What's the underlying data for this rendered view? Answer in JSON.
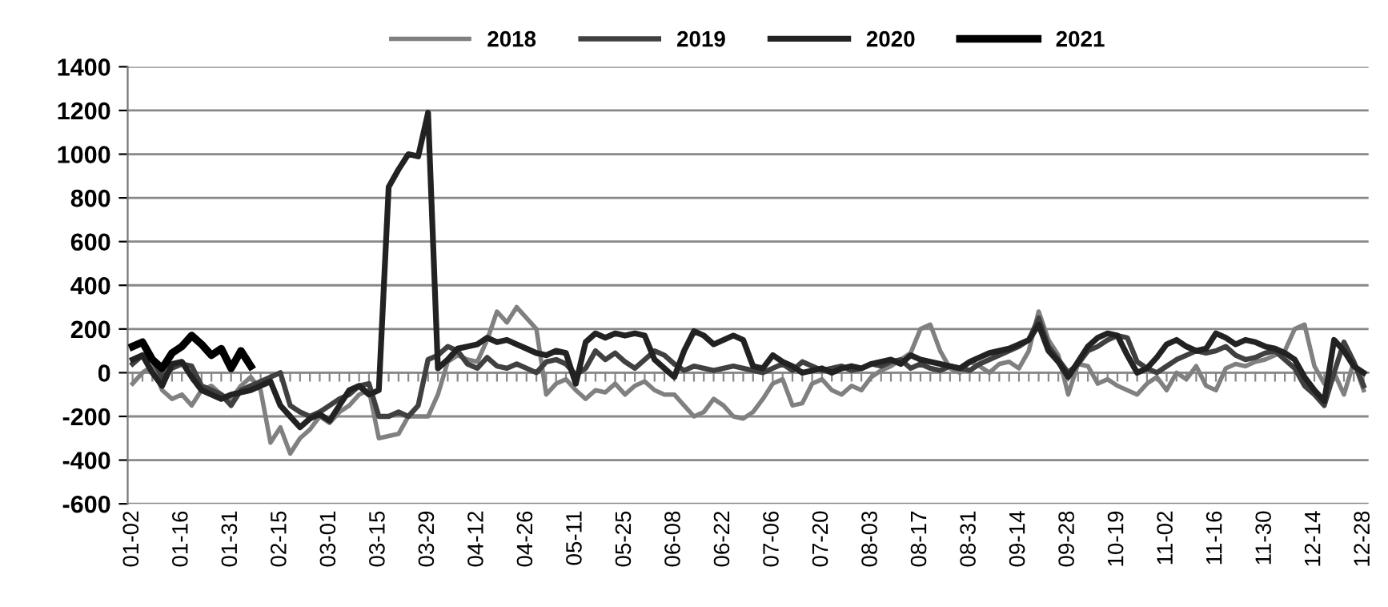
{
  "chart_data": {
    "type": "line",
    "categories": [
      "01-02",
      null,
      null,
      null,
      null,
      "01-16",
      null,
      null,
      null,
      null,
      "01-31",
      null,
      null,
      null,
      null,
      "02-15",
      null,
      null,
      null,
      null,
      "03-01",
      null,
      null,
      null,
      null,
      "03-15",
      null,
      null,
      null,
      null,
      "03-29",
      null,
      null,
      null,
      null,
      "04-12",
      null,
      null,
      null,
      null,
      "04-26",
      null,
      null,
      null,
      null,
      "05-11",
      null,
      null,
      null,
      null,
      "05-25",
      null,
      null,
      null,
      null,
      "06-08",
      null,
      null,
      null,
      null,
      "06-22",
      null,
      null,
      null,
      null,
      "07-06",
      null,
      null,
      null,
      null,
      "07-20",
      null,
      null,
      null,
      null,
      "08-03",
      null,
      null,
      null,
      null,
      "08-17",
      null,
      null,
      null,
      null,
      "08-31",
      null,
      null,
      null,
      null,
      "09-14",
      null,
      null,
      null,
      null,
      "09-28",
      null,
      null,
      null,
      null,
      "10-19",
      null,
      null,
      null,
      null,
      "11-02",
      null,
      null,
      null,
      null,
      "11-16",
      null,
      null,
      null,
      null,
      "11-30",
      null,
      null,
      null,
      null,
      "12-14",
      null,
      null,
      null,
      null,
      "12-28"
    ],
    "series": [
      {
        "name": "2018",
        "color": "#808080",
        "values": [
          -50,
          0,
          30,
          -80,
          -120,
          -100,
          -150,
          -80,
          -60,
          -100,
          -120,
          -60,
          -20,
          -80,
          -320,
          -250,
          -370,
          -300,
          -260,
          -200,
          -230,
          -180,
          -150,
          -100,
          -80,
          -300,
          -290,
          -280,
          -200,
          -200,
          -200,
          -100,
          50,
          80,
          60,
          50,
          150,
          280,
          230,
          300,
          250,
          200,
          -100,
          -50,
          -30,
          -80,
          -120,
          -80,
          -90,
          -50,
          -100,
          -60,
          -40,
          -80,
          -100,
          -100,
          -150,
          -200,
          -180,
          -120,
          -150,
          -200,
          -210,
          -180,
          -120,
          -50,
          -30,
          -150,
          -140,
          -50,
          -30,
          -80,
          -100,
          -60,
          -80,
          -20,
          10,
          30,
          60,
          90,
          200,
          220,
          100,
          20,
          0,
          50,
          30,
          0,
          40,
          50,
          20,
          100,
          280,
          150,
          80,
          -100,
          40,
          30,
          -50,
          -30,
          -60,
          -80,
          -100,
          -50,
          -20,
          -80,
          0,
          -30,
          30,
          -60,
          -80,
          20,
          40,
          30,
          50,
          60,
          80,
          100,
          200,
          220,
          30,
          -50,
          0,
          -100,
          50,
          -80
        ]
      },
      {
        "name": "2019",
        "color": "#404040",
        "values": [
          40,
          80,
          60,
          -20,
          20,
          40,
          30,
          -60,
          -80,
          -100,
          -150,
          -80,
          -60,
          -40,
          -20,
          0,
          -150,
          -180,
          -200,
          -180,
          -150,
          -120,
          -100,
          -60,
          -50,
          -200,
          -200,
          -180,
          -200,
          -150,
          60,
          80,
          120,
          100,
          40,
          20,
          70,
          30,
          20,
          40,
          20,
          0,
          50,
          60,
          40,
          -10,
          20,
          100,
          60,
          90,
          50,
          20,
          60,
          100,
          80,
          40,
          10,
          30,
          20,
          10,
          20,
          30,
          20,
          10,
          0,
          20,
          40,
          10,
          50,
          30,
          10,
          20,
          30,
          10,
          20,
          40,
          30,
          50,
          60,
          20,
          40,
          20,
          10,
          30,
          20,
          10,
          40,
          60,
          80,
          100,
          120,
          150,
          250,
          120,
          60,
          0,
          40,
          100,
          120,
          150,
          170,
          160,
          50,
          20,
          0,
          30,
          60,
          80,
          100,
          90,
          100,
          120,
          80,
          60,
          70,
          90,
          100,
          60,
          20,
          -60,
          -100,
          -150,
          0,
          140,
          50,
          -60
        ]
      },
      {
        "name": "2020",
        "color": "#222222",
        "values": [
          60,
          80,
          0,
          -60,
          40,
          50,
          -20,
          -80,
          -100,
          -120,
          -100,
          -90,
          -80,
          -60,
          -40,
          -150,
          -200,
          -250,
          -210,
          -190,
          -220,
          -150,
          -80,
          -60,
          -100,
          -80,
          850,
          930,
          1000,
          990,
          1190,
          20,
          60,
          110,
          120,
          130,
          160,
          140,
          150,
          130,
          110,
          90,
          80,
          100,
          90,
          -50,
          140,
          180,
          160,
          180,
          170,
          180,
          170,
          60,
          20,
          -20,
          100,
          190,
          170,
          130,
          150,
          170,
          150,
          30,
          20,
          80,
          50,
          30,
          0,
          10,
          20,
          0,
          20,
          30,
          20,
          40,
          50,
          60,
          40,
          80,
          60,
          50,
          40,
          30,
          20,
          50,
          70,
          90,
          100,
          110,
          130,
          150,
          220,
          100,
          50,
          -20,
          50,
          120,
          160,
          180,
          170,
          80,
          0,
          20,
          70,
          130,
          150,
          120,
          100,
          110,
          180,
          160,
          130,
          150,
          140,
          120,
          110,
          90,
          60,
          -20,
          -80,
          -130,
          150,
          100,
          30,
          0
        ]
      },
      {
        "name": "2021",
        "color": "#000000",
        "values": [
          120,
          140,
          60,
          20,
          90,
          120,
          170,
          130,
          80,
          110,
          20,
          100,
          30,
          null,
          null,
          null,
          null,
          null,
          null,
          null,
          null,
          null,
          null,
          null,
          null,
          null,
          null,
          null,
          null,
          null,
          null,
          null,
          null,
          null,
          null,
          null,
          null,
          null,
          null,
          null,
          null,
          null,
          null,
          null,
          null,
          null,
          null,
          null,
          null,
          null,
          null,
          null,
          null,
          null,
          null,
          null,
          null,
          null,
          null,
          null,
          null,
          null,
          null,
          null,
          null,
          null,
          null,
          null,
          null,
          null,
          null,
          null,
          null,
          null,
          null,
          null,
          null,
          null,
          null,
          null,
          null,
          null,
          null,
          null,
          null,
          null,
          null,
          null,
          null,
          null,
          null,
          null,
          null,
          null,
          null,
          null,
          null,
          null,
          null,
          null,
          null,
          null,
          null,
          null,
          null,
          null,
          null,
          null,
          null,
          null,
          null,
          null,
          null,
          null,
          null,
          null,
          null,
          null,
          null,
          null,
          null,
          null,
          null,
          null,
          null,
          null
        ]
      }
    ],
    "ylim": [
      -600,
      1400
    ],
    "yticks": [
      -600,
      -400,
      -200,
      0,
      200,
      400,
      600,
      800,
      1000,
      1200,
      1400
    ],
    "grid": "y",
    "legend": "top"
  }
}
